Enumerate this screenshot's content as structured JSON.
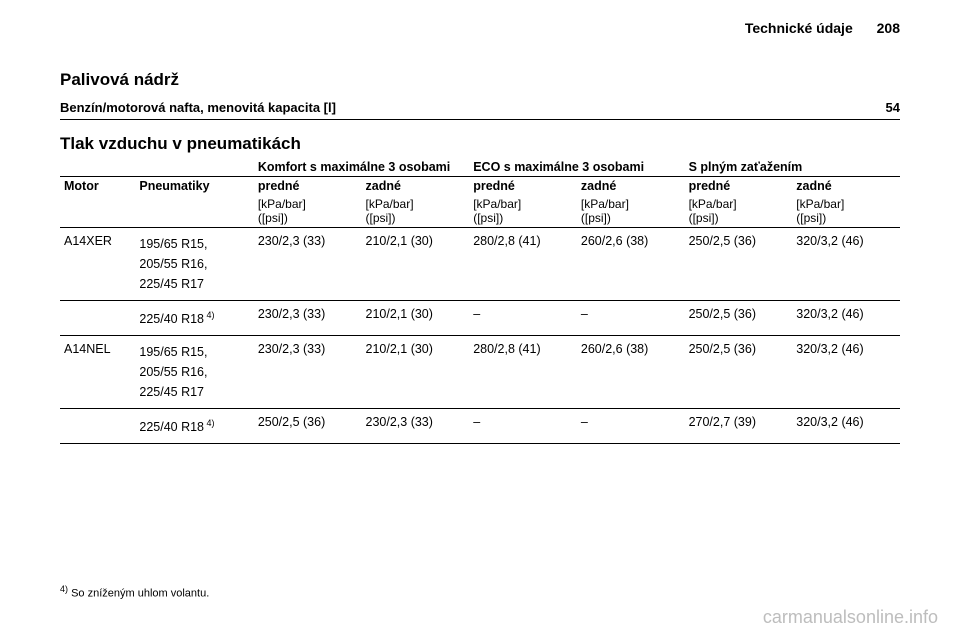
{
  "header": {
    "section": "Technické údaje",
    "page": "208"
  },
  "fuel": {
    "title": "Palivová nádrž",
    "label": "Benzín/motorová nafta, menovitá kapacita [l]",
    "value": "54"
  },
  "tire": {
    "title": "Tlak vzduchu v pneumatikách",
    "groups": {
      "comfort": "Komfort s maximálne 3 osobami",
      "eco": "ECO s maximálne 3 osobami",
      "full": "S plným zaťažením"
    },
    "cols": {
      "motor": "Motor",
      "tires": "Pneumatiky",
      "front": "predné",
      "rear": "zadné",
      "unit1": "[kPa/bar]",
      "unit2": "([psi])"
    },
    "rows": [
      {
        "motor": "A14XER",
        "tires": [
          "195/65 R15,",
          "205/55 R16,",
          "225/45 R17"
        ],
        "vals": [
          "230/2,3 (33)",
          "210/2,1 (30)",
          "280/2,8 (41)",
          "260/2,6 (38)",
          "250/2,5 (36)",
          "320/3,2 (46)"
        ]
      },
      {
        "motor": "",
        "tires": [
          "225/40 R18"
        ],
        "fn": "4)",
        "vals": [
          "230/2,3 (33)",
          "210/2,1 (30)",
          "–",
          "–",
          "250/2,5 (36)",
          "320/3,2 (46)"
        ]
      },
      {
        "motor": "A14NEL",
        "tires": [
          "195/65 R15,",
          "205/55 R16,",
          "225/45 R17"
        ],
        "vals": [
          "230/2,3 (33)",
          "210/2,1 (30)",
          "280/2,8 (41)",
          "260/2,6 (38)",
          "250/2,5 (36)",
          "320/3,2 (46)"
        ]
      },
      {
        "motor": "",
        "tires": [
          "225/40 R18"
        ],
        "fn": "4)",
        "vals": [
          "250/2,5 (36)",
          "230/2,3 (33)",
          "–",
          "–",
          "270/2,7 (39)",
          "320/3,2 (46)"
        ]
      }
    ],
    "footnote": {
      "mark": "4)",
      "text": "So zníženým uhlom volantu."
    }
  },
  "watermark": "carmanualsonline.info"
}
